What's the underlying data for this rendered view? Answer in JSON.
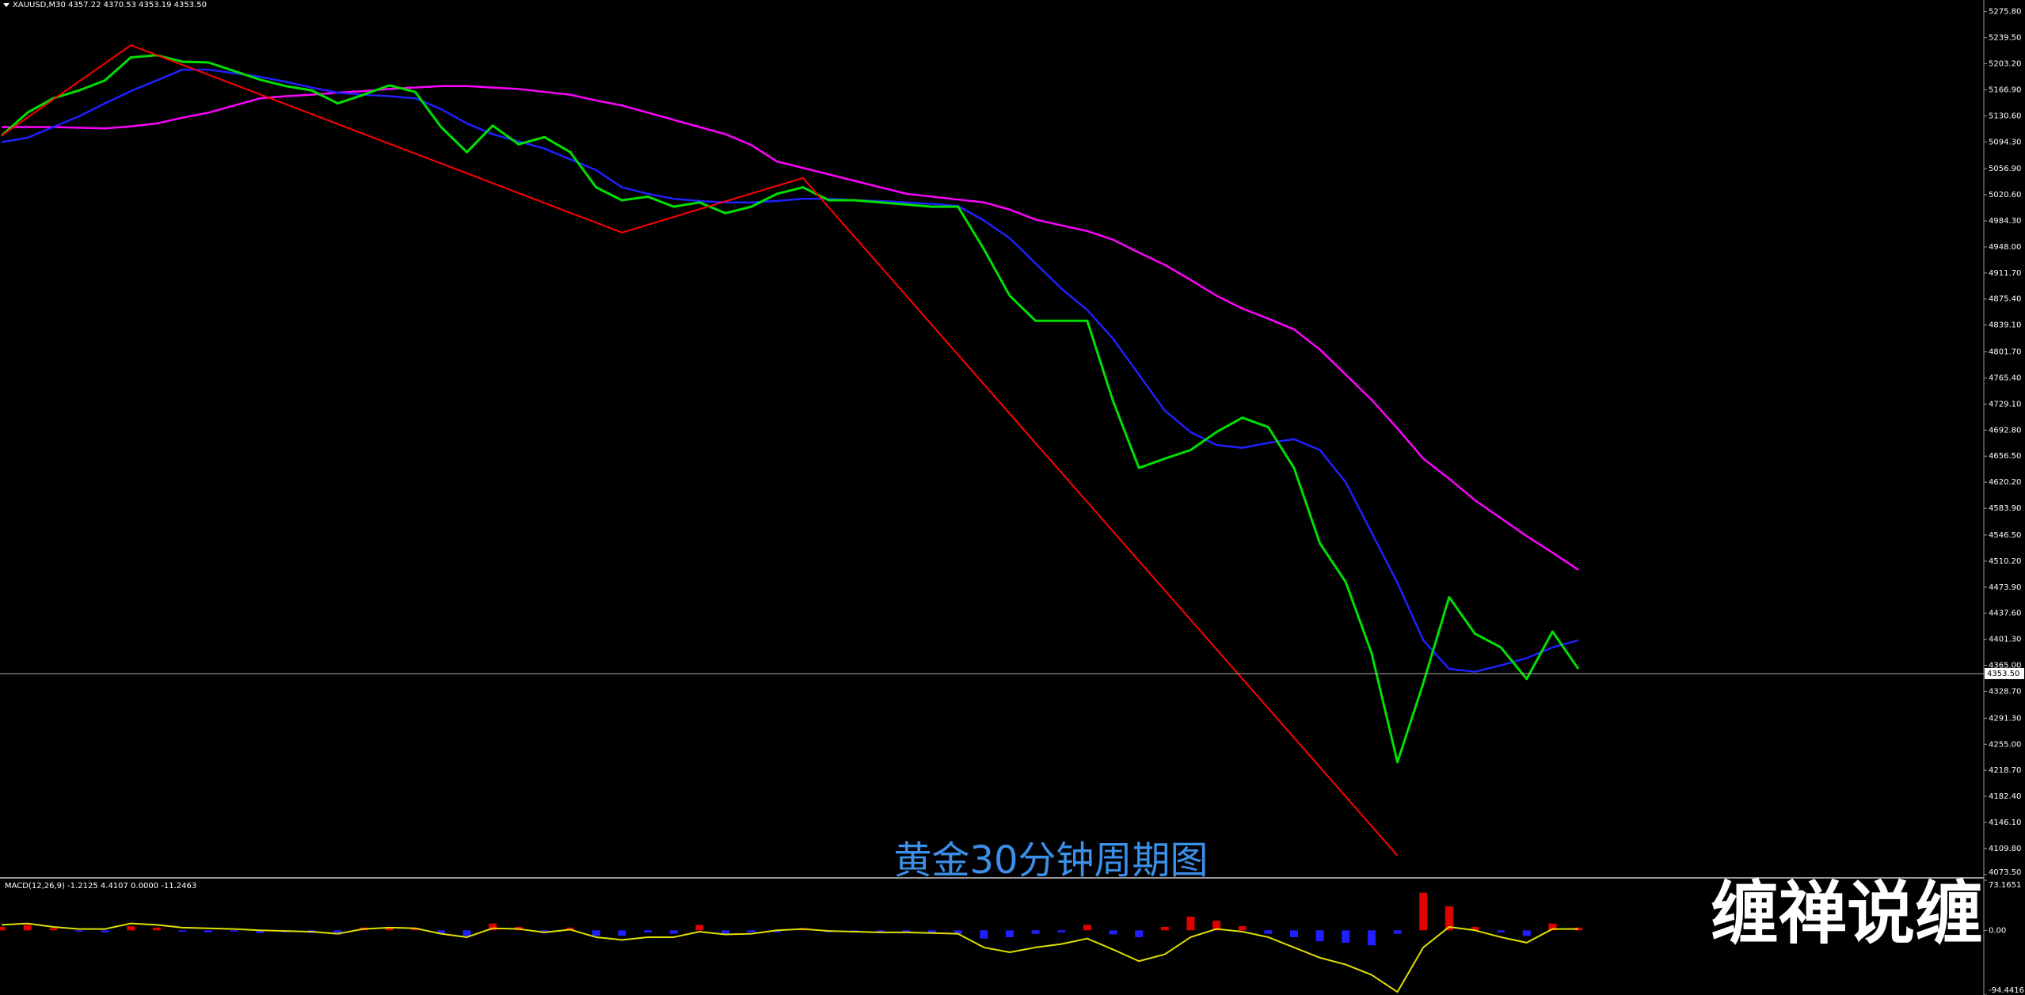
{
  "chart_data": [
    {
      "type": "line",
      "title": "XAUUSD,M30  4357.22 4370.53 4353.19 4353.50",
      "ylim": [
        4070,
        5292
      ],
      "yticks": [
        {
          "value": 5275.8,
          "label": "5275.80"
        },
        {
          "value": 5239.5,
          "label": "5239.50"
        },
        {
          "value": 5203.2,
          "label": "5203.20"
        },
        {
          "value": 5166.9,
          "label": "5166.90"
        },
        {
          "value": 5130.6,
          "label": "5130.60"
        },
        {
          "value": 5094.3,
          "label": "5094.30"
        },
        {
          "value": 5056.9,
          "label": "5056.90"
        },
        {
          "value": 5020.6,
          "label": "5020.60"
        },
        {
          "value": 4984.3,
          "label": "4984.30"
        },
        {
          "value": 4948,
          "label": "4948.00"
        },
        {
          "value": 4911.7,
          "label": "4911.70"
        },
        {
          "value": 4875.4,
          "label": "4875.40"
        },
        {
          "value": 4839.1,
          "label": "4839.10"
        },
        {
          "value": 4801.7,
          "label": "4801.70"
        },
        {
          "value": 4765.4,
          "label": "4765.40"
        },
        {
          "value": 4729.1,
          "label": "4729.10"
        },
        {
          "value": 4692.8,
          "label": "4692.80"
        },
        {
          "value": 4656.5,
          "label": "4656.50"
        },
        {
          "value": 4620.2,
          "label": "4620.20"
        },
        {
          "value": 4583.9,
          "label": "4583.90"
        },
        {
          "value": 4546.5,
          "label": "4546.50"
        },
        {
          "value": 4510.2,
          "label": "4510.20"
        },
        {
          "value": 4473.9,
          "label": "4473.90"
        },
        {
          "value": 4437.6,
          "label": "4437.60"
        },
        {
          "value": 4401.3,
          "label": "4401.30"
        },
        {
          "value": 4365,
          "label": "4365.00"
        },
        {
          "value": 4328.7,
          "label": "4328.70"
        },
        {
          "value": 4291.3,
          "label": "4291.30"
        },
        {
          "value": 4255,
          "label": "4255.00"
        },
        {
          "value": 4218.7,
          "label": "4218.70"
        },
        {
          "value": 4182.4,
          "label": "4182.40"
        },
        {
          "value": 4146.1,
          "label": "4146.10"
        },
        {
          "value": 4109.8,
          "label": "4109.80"
        },
        {
          "value": 4073.5,
          "label": "4073.50"
        }
      ],
      "series": [
        {
          "color": "#00e000",
          "values": [
            5103,
            5135,
            5155,
            5166,
            5180,
            5212,
            5215,
            5206,
            5205,
            5193,
            5181,
            5172,
            5166,
            5148,
            5160,
            5173,
            5164,
            5115,
            5080,
            5117,
            5091,
            5101,
            5080,
            5031,
            5013,
            5018,
            5004,
            5010,
            4995,
            5004,
            5022,
            5031,
            5013,
            5013,
            5010,
            5007,
            5004,
            5004,
            4945,
            4880,
            4845,
            4845,
            4845,
            4733,
            4640,
            4653,
            4665,
            4690,
            4710,
            4697,
            4640,
            4535,
            4481,
            4382,
            4230,
            4340,
            4460,
            4409,
            4390,
            4346,
            4412,
            4360
          ]
        },
        {
          "color": "#2020ff",
          "values": [
            5094,
            5100,
            5115,
            5130,
            5148,
            5165,
            5180,
            5195,
            5195,
            5190,
            5185,
            5178,
            5170,
            5163,
            5160,
            5158,
            5155,
            5140,
            5120,
            5105,
            5095,
            5085,
            5070,
            5055,
            5031,
            5022,
            5015,
            5012,
            5010,
            5010,
            5012,
            5015,
            5015,
            5013,
            5012,
            5010,
            5008,
            5005,
            4985,
            4960,
            4925,
            4890,
            4860,
            4820,
            4770,
            4720,
            4690,
            4672,
            4668,
            4675,
            4680,
            4665,
            4620,
            4550,
            4480,
            4400,
            4360,
            4356,
            4365,
            4375,
            4390,
            4400
          ]
        },
        {
          "color": "#ff00ff",
          "values": [
            5115,
            5115,
            5115,
            5114,
            5113,
            5116,
            5120,
            5128,
            5135,
            5145,
            5155,
            5158,
            5160,
            5163,
            5165,
            5168,
            5170,
            5172,
            5172,
            5170,
            5168,
            5164,
            5160,
            5152,
            5145,
            5135,
            5125,
            5115,
            5105,
            5090,
            5067,
            5058,
            5049,
            5040,
            5031,
            5022,
            5018,
            5014,
            5010,
            5000,
            4986,
            4978,
            4970,
            4958,
            4940,
            4923,
            4902,
            4880,
            4862,
            4848,
            4833,
            4805,
            4770,
            4735,
            4695,
            4653,
            4625,
            4595,
            4570,
            4545,
            4522,
            4498
          ]
        }
      ],
      "zigzag": {
        "color": "#ff0000",
        "x": [
          0,
          5,
          12,
          24,
          31,
          54
        ],
        "values": [
          5103,
          5229,
          5133,
          4968,
          5044,
          4100
        ]
      },
      "current_price": {
        "value": 4353.5,
        "label": "4353.50"
      },
      "annotations": [
        "黄金30分钟周期图",
        "缠禅说缠"
      ]
    },
    {
      "type": "bar",
      "title": "MACD(12,26,9) -1.2125 4.4107 0.0000 -11.2463",
      "ylim": [
        -94.4416,
        73.1651
      ],
      "yticks": [
        73.1651,
        {
          "value": 0,
          "label": "0.00"
        },
        -94.4416
      ],
      "positive_color": "#e00000",
      "negative_color": "#2020ff",
      "values": [
        5,
        8,
        3,
        -2,
        -3,
        6,
        4,
        -2,
        -3,
        -2,
        -4,
        -3,
        -4,
        -6,
        4,
        5,
        3,
        -5,
        -8,
        10,
        5,
        -4,
        4,
        -8,
        -8,
        -3,
        -5,
        8,
        -5,
        -3,
        -3,
        3,
        -3,
        -3,
        -3,
        -3,
        -4,
        -5,
        -12,
        -10,
        -5,
        -3,
        8,
        -6,
        -10,
        5,
        20,
        14,
        6,
        -5,
        -10,
        -16,
        -18,
        -22,
        -5,
        55,
        35,
        5,
        -3,
        -8,
        10,
        4
      ],
      "series": [
        {
          "color": "#e0e000",
          "values": [
            8,
            10,
            5,
            2,
            2,
            10,
            8,
            4,
            3,
            2,
            0,
            -1,
            -2,
            -5,
            2,
            4,
            3,
            -5,
            -10,
            3,
            2,
            -3,
            1,
            -10,
            -14,
            -10,
            -10,
            -2,
            -6,
            -5,
            0,
            2,
            -1,
            -2,
            -3,
            -3,
            -4,
            -5,
            -25,
            -32,
            -25,
            -20,
            -12,
            -28,
            -45,
            -35,
            -10,
            2,
            -2,
            -10,
            -25,
            -40,
            -50,
            -65,
            -90,
            -25,
            5,
            0,
            -10,
            -18,
            2,
            2
          ]
        }
      ]
    }
  ]
}
